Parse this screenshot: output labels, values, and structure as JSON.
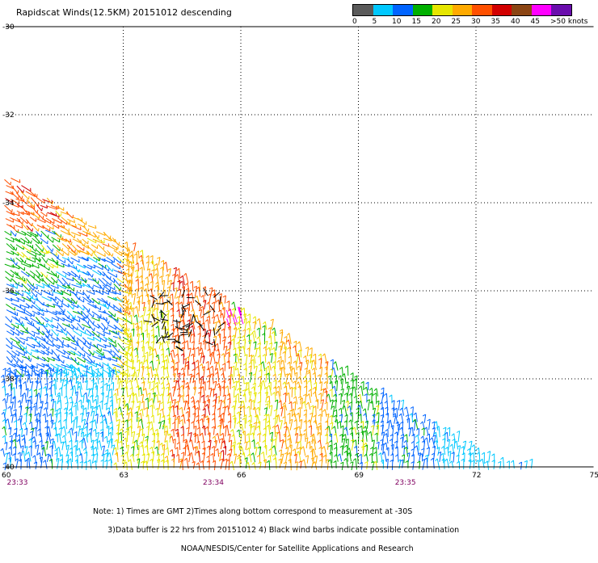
{
  "title": "Rapidscat Winds(12.5KM) 20151012 descending",
  "color_scale": {
    "labels": [
      "0",
      "5",
      "10",
      "15",
      "20",
      "25",
      "30",
      "35",
      "40",
      "45",
      ">50 knots"
    ],
    "colors": [
      "#5a5a5a",
      "#00c8ff",
      "#0064ff",
      "#00b000",
      "#e6e600",
      "#ffaa00",
      "#ff5000",
      "#d20000",
      "#8b4513",
      "#ff00ff",
      "#6a0dad"
    ]
  },
  "map": {
    "lat_labels": [
      "-30",
      "-32",
      "-34",
      "-36",
      "-38",
      "-40"
    ],
    "lat_values": [
      -30,
      -32,
      -34,
      -36,
      -38,
      -40
    ],
    "lon_labels": [
      "60",
      "63",
      "66",
      "69",
      "72",
      "75"
    ],
    "lon_values": [
      60,
      63,
      66,
      69,
      72,
      75
    ],
    "time_labels": [
      {
        "text": "23:33",
        "lon": 60.3
      },
      {
        "text": "23:34",
        "lon": 65.3
      },
      {
        "text": "23:35",
        "lon": 70.2
      }
    ],
    "swath_edge": [
      {
        "lon": 60.0,
        "lat": -33.35
      },
      {
        "lon": 72.5,
        "lat": -39.9
      },
      {
        "lon": 73.3,
        "lat": -40.0
      }
    ],
    "contamination_region": {
      "lon_center": 64.6,
      "lat_center": -36.7
    }
  },
  "notes": [
    "Note: 1) Times are GMT 2)Times along bottom correspond to measurement at -30S",
    "      3)Data buffer is 22 hrs from 20151012 4) Black wind barbs indicate possible contamination",
    "                                    NOAA/NESDIS/Center for Satellite Applications and Research"
  ]
}
